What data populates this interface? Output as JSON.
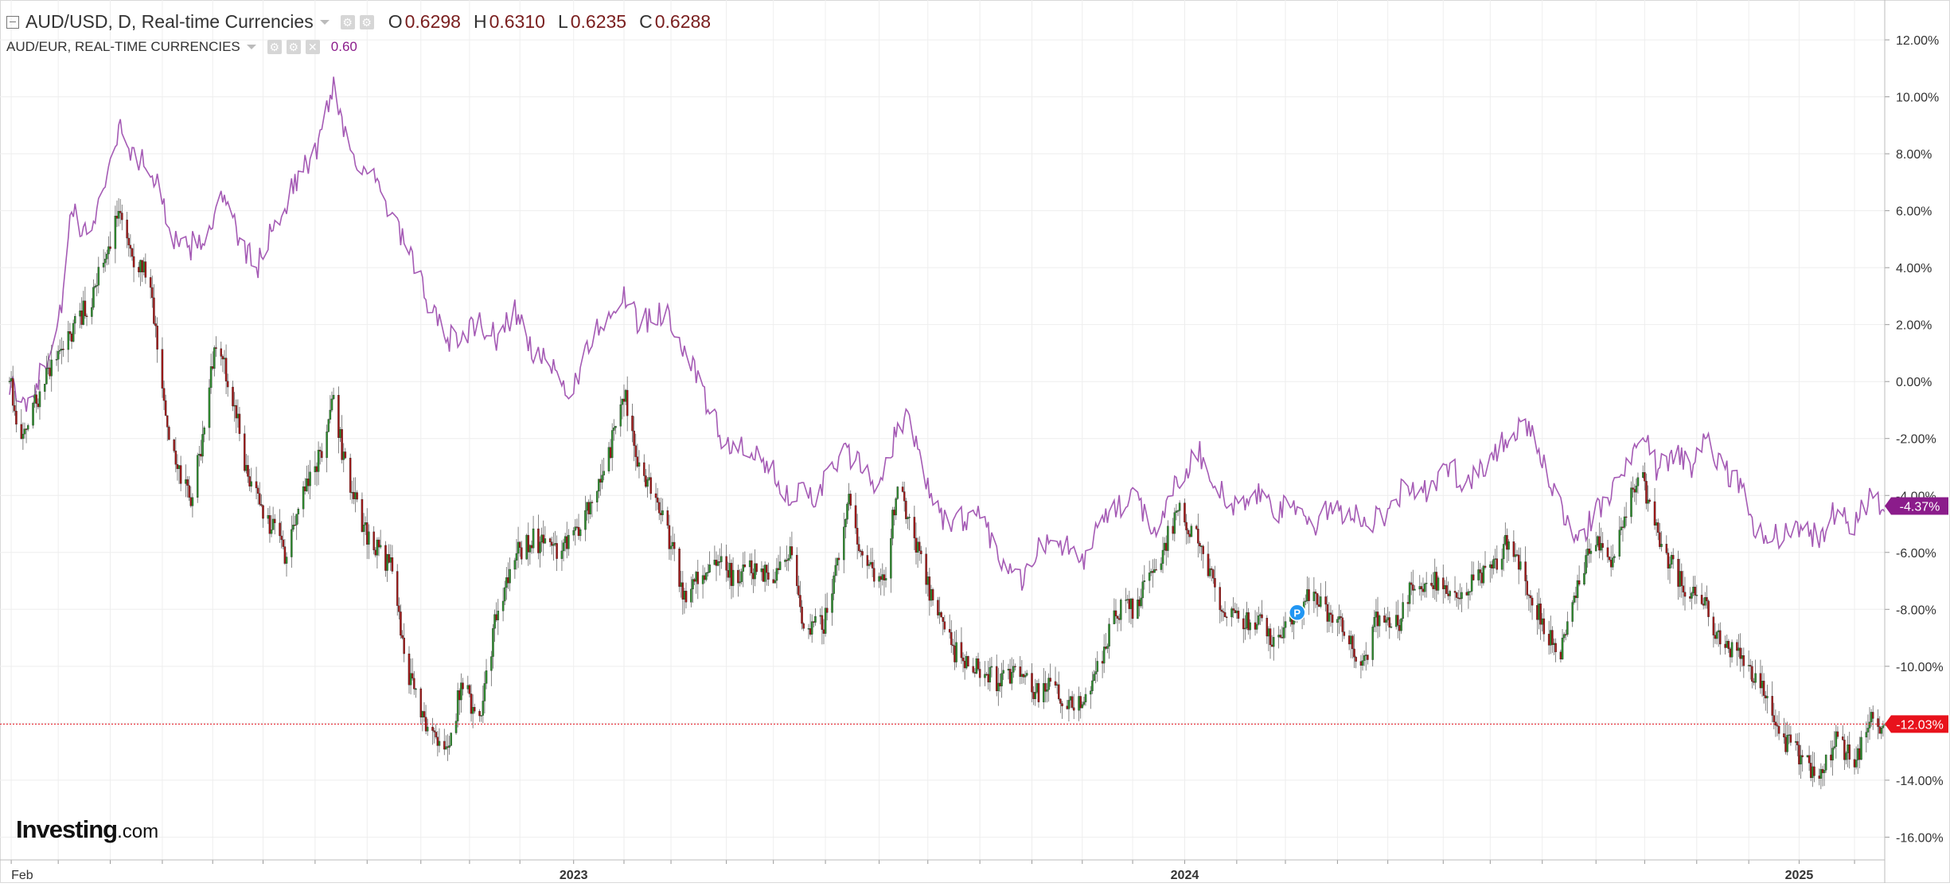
{
  "legend": {
    "main_title": "AUD/USD, D, Real-time Currencies",
    "ohlc": [
      {
        "key": "O",
        "value": "0.6298"
      },
      {
        "key": "H",
        "value": "0.6310"
      },
      {
        "key": "L",
        "value": "0.6235"
      },
      {
        "key": "C",
        "value": "0.6288"
      }
    ],
    "compare_title": "AUD/EUR, REAL-TIME CURRENCIES",
    "compare_value": "0.60"
  },
  "brand": {
    "name": "Investing",
    "domain": ".com"
  },
  "colors": {
    "up": "#2e8b2e",
    "down": "#a01818",
    "compare_line": "#a55bb5",
    "last_price": "#e8121c",
    "compare_badge": "#8b1c8b",
    "grid": "#eeeeee",
    "axis_text": "#333333"
  },
  "chart_data": {
    "type": "candlestick",
    "y_axis": {
      "unit": "percent",
      "min": -16.8,
      "max": 13.4,
      "ticks": [
        12,
        10,
        8,
        6,
        4,
        2,
        0,
        -2,
        -4,
        -6,
        -8,
        -10,
        -12,
        -14,
        -16
      ],
      "tick_labels": [
        "12.00%",
        "10.00%",
        "8.00%",
        "6.00%",
        "4.00%",
        "2.00%",
        "0.00%",
        "-2.00%",
        "-4.00%",
        "-6.00%",
        "-8.00%",
        "-10.00%",
        "-12.00%",
        "-14.00%",
        "-16.00%"
      ]
    },
    "x_axis": {
      "start": "2022-01-31",
      "end": "2025-02-21",
      "labels": [
        {
          "date": "2022-02-01",
          "text": "Feb",
          "bold": false
        },
        {
          "date": "2023-01-02",
          "text": "2023",
          "bold": true
        },
        {
          "date": "2024-01-01",
          "text": "2024",
          "bold": true
        },
        {
          "date": "2025-01-01",
          "text": "2025",
          "bold": true
        }
      ],
      "month_ticks": [
        "2022-03-01",
        "2022-04-01",
        "2022-05-02",
        "2022-06-01",
        "2022-07-01",
        "2022-08-01",
        "2022-09-01",
        "2022-10-03",
        "2022-11-01",
        "2022-12-01",
        "2023-02-01",
        "2023-03-01",
        "2023-04-03",
        "2023-05-01",
        "2023-06-01",
        "2023-07-03",
        "2023-08-01",
        "2023-09-01",
        "2023-10-02",
        "2023-11-01",
        "2023-12-01",
        "2024-02-01",
        "2024-03-01",
        "2024-04-01",
        "2024-05-01",
        "2024-06-03",
        "2024-07-01",
        "2024-08-01",
        "2024-09-02",
        "2024-10-01",
        "2024-11-01",
        "2024-12-02",
        "2025-02-03"
      ]
    },
    "series": [
      {
        "name": "AUD/USD",
        "kind": "candlestick",
        "anchors": [
          [
            "2022-01-31",
            0.0
          ],
          [
            "2022-02-07",
            -2.0
          ],
          [
            "2022-02-21",
            0.0
          ],
          [
            "2022-03-07",
            1.5
          ],
          [
            "2022-03-21",
            3.0
          ],
          [
            "2022-04-04",
            5.5
          ],
          [
            "2022-04-08",
            6.0
          ],
          [
            "2022-04-14",
            4.5
          ],
          [
            "2022-04-25",
            3.5
          ],
          [
            "2022-05-04",
            -1.5
          ],
          [
            "2022-05-11",
            -3.0
          ],
          [
            "2022-05-19",
            -4.0
          ],
          [
            "2022-05-26",
            -2.0
          ],
          [
            "2022-06-03",
            1.5
          ],
          [
            "2022-06-15",
            -1.0
          ],
          [
            "2022-06-22",
            -3.5
          ],
          [
            "2022-07-01",
            -4.5
          ],
          [
            "2022-07-14",
            -6.0
          ],
          [
            "2022-07-25",
            -4.0
          ],
          [
            "2022-08-05",
            -2.5
          ],
          [
            "2022-08-11",
            -0.5
          ],
          [
            "2022-08-19",
            -3.0
          ],
          [
            "2022-09-01",
            -5.5
          ],
          [
            "2022-09-15",
            -6.5
          ],
          [
            "2022-09-26",
            -10.5
          ],
          [
            "2022-10-10",
            -12.5
          ],
          [
            "2022-10-20",
            -13.0
          ],
          [
            "2022-10-27",
            -10.5
          ],
          [
            "2022-11-07",
            -12.0
          ],
          [
            "2022-11-16",
            -8.5
          ],
          [
            "2022-11-30",
            -6.0
          ],
          [
            "2022-12-09",
            -5.5
          ],
          [
            "2022-12-20",
            -6.0
          ],
          [
            "2023-01-03",
            -5.5
          ],
          [
            "2023-01-18",
            -3.5
          ],
          [
            "2023-02-02",
            -0.5
          ],
          [
            "2023-02-10",
            -3.0
          ],
          [
            "2023-02-24",
            -4.5
          ],
          [
            "2023-03-08",
            -7.5
          ],
          [
            "2023-03-17",
            -7.0
          ],
          [
            "2023-03-30",
            -6.0
          ],
          [
            "2023-04-07",
            -7.0
          ],
          [
            "2023-04-20",
            -6.5
          ],
          [
            "2023-05-01",
            -7.0
          ],
          [
            "2023-05-11",
            -6.0
          ],
          [
            "2023-05-19",
            -8.5
          ],
          [
            "2023-05-31",
            -8.5
          ],
          [
            "2023-06-16",
            -4.0
          ],
          [
            "2023-06-23",
            -6.5
          ],
          [
            "2023-07-06",
            -7.0
          ],
          [
            "2023-07-14",
            -3.5
          ],
          [
            "2023-07-24",
            -5.5
          ],
          [
            "2023-08-03",
            -7.5
          ],
          [
            "2023-08-17",
            -9.5
          ],
          [
            "2023-08-31",
            -10.0
          ],
          [
            "2023-09-11",
            -10.5
          ],
          [
            "2023-09-26",
            -10.0
          ],
          [
            "2023-10-04",
            -11.0
          ],
          [
            "2023-10-12",
            -10.5
          ],
          [
            "2023-10-26",
            -11.5
          ],
          [
            "2023-11-07",
            -10.5
          ],
          [
            "2023-11-14",
            -9.5
          ],
          [
            "2023-11-21",
            -8.0
          ],
          [
            "2023-12-01",
            -8.0
          ],
          [
            "2023-12-15",
            -6.5
          ],
          [
            "2023-12-28",
            -4.5
          ],
          [
            "2024-01-08",
            -5.5
          ],
          [
            "2024-01-17",
            -7.0
          ],
          [
            "2024-01-25",
            -8.0
          ],
          [
            "2024-02-07",
            -8.5
          ],
          [
            "2024-02-15",
            -8.5
          ],
          [
            "2024-02-22",
            -9.0
          ],
          [
            "2024-03-04",
            -8.5
          ],
          [
            "2024-03-14",
            -7.5
          ],
          [
            "2024-03-25",
            -8.0
          ],
          [
            "2024-04-02",
            -8.5
          ],
          [
            "2024-04-16",
            -10.0
          ],
          [
            "2024-04-26",
            -8.0
          ],
          [
            "2024-05-08",
            -8.5
          ],
          [
            "2024-05-16",
            -7.0
          ],
          [
            "2024-05-29",
            -7.0
          ],
          [
            "2024-06-10",
            -7.5
          ],
          [
            "2024-06-24",
            -7.0
          ],
          [
            "2024-07-08",
            -6.0
          ],
          [
            "2024-07-12",
            -5.5
          ],
          [
            "2024-07-22",
            -7.0
          ],
          [
            "2024-08-05",
            -9.0
          ],
          [
            "2024-08-12",
            -9.5
          ],
          [
            "2024-08-19",
            -7.5
          ],
          [
            "2024-09-02",
            -5.5
          ],
          [
            "2024-09-11",
            -6.5
          ],
          [
            "2024-09-23",
            -4.0
          ],
          [
            "2024-09-30",
            -3.5
          ],
          [
            "2024-10-09",
            -5.5
          ],
          [
            "2024-10-22",
            -7.0
          ],
          [
            "2024-11-07",
            -8.0
          ],
          [
            "2024-11-13",
            -9.0
          ],
          [
            "2024-11-22",
            -9.5
          ],
          [
            "2024-12-10",
            -10.5
          ],
          [
            "2024-12-19",
            -12.5
          ],
          [
            "2024-12-31",
            -13.0
          ],
          [
            "2025-01-13",
            -14.0
          ],
          [
            "2025-01-23",
            -12.5
          ],
          [
            "2025-02-03",
            -13.5
          ],
          [
            "2025-02-11",
            -12.0
          ],
          [
            "2025-02-21",
            -12.03
          ]
        ]
      },
      {
        "name": "AUD/EUR",
        "kind": "line",
        "anchors": [
          [
            "2022-01-31",
            0.0
          ],
          [
            "2022-02-07",
            -1.0
          ],
          [
            "2022-02-21",
            0.5
          ],
          [
            "2022-03-04",
            3.0
          ],
          [
            "2022-03-09",
            6.0
          ],
          [
            "2022-03-18",
            5.0
          ],
          [
            "2022-03-31",
            7.5
          ],
          [
            "2022-04-07",
            9.0
          ],
          [
            "2022-04-14",
            8.0
          ],
          [
            "2022-04-25",
            7.5
          ],
          [
            "2022-05-04",
            6.0
          ],
          [
            "2022-05-12",
            4.5
          ],
          [
            "2022-05-26",
            5.0
          ],
          [
            "2022-06-08",
            6.5
          ],
          [
            "2022-06-16",
            5.0
          ],
          [
            "2022-06-27",
            4.0
          ],
          [
            "2022-07-08",
            5.5
          ],
          [
            "2022-07-20",
            7.0
          ],
          [
            "2022-08-01",
            8.0
          ],
          [
            "2022-08-08",
            9.5
          ],
          [
            "2022-08-12",
            10.5
          ],
          [
            "2022-08-22",
            8.0
          ],
          [
            "2022-09-02",
            7.5
          ],
          [
            "2022-09-13",
            6.0
          ],
          [
            "2022-09-22",
            5.0
          ],
          [
            "2022-09-29",
            4.0
          ],
          [
            "2022-10-06",
            3.0
          ],
          [
            "2022-10-17",
            1.5
          ],
          [
            "2022-10-24",
            1.5
          ],
          [
            "2022-11-07",
            2.0
          ],
          [
            "2022-11-17",
            1.5
          ],
          [
            "2022-11-28",
            2.5
          ],
          [
            "2022-12-09",
            1.0
          ],
          [
            "2022-12-19",
            0.5
          ],
          [
            "2022-12-30",
            -0.5
          ],
          [
            "2023-01-06",
            0.5
          ],
          [
            "2023-01-17",
            2.0
          ],
          [
            "2023-01-31",
            3.0
          ],
          [
            "2023-02-10",
            2.0
          ],
          [
            "2023-02-24",
            2.5
          ],
          [
            "2023-03-03",
            2.0
          ],
          [
            "2023-03-17",
            0.0
          ],
          [
            "2023-03-31",
            -2.0
          ],
          [
            "2023-04-14",
            -2.5
          ],
          [
            "2023-04-28",
            -3.0
          ],
          [
            "2023-05-12",
            -4.0
          ],
          [
            "2023-05-25",
            -4.0
          ],
          [
            "2023-06-13",
            -2.5
          ],
          [
            "2023-06-23",
            -3.0
          ],
          [
            "2023-07-03",
            -4.0
          ],
          [
            "2023-07-12",
            -2.0
          ],
          [
            "2023-07-20",
            -1.0
          ],
          [
            "2023-07-27",
            -2.5
          ],
          [
            "2023-08-04",
            -4.5
          ],
          [
            "2023-08-18",
            -5.0
          ],
          [
            "2023-08-31",
            -4.5
          ],
          [
            "2023-09-12",
            -6.0
          ],
          [
            "2023-09-25",
            -7.0
          ],
          [
            "2023-10-04",
            -6.0
          ],
          [
            "2023-10-18",
            -5.5
          ],
          [
            "2023-11-01",
            -6.5
          ],
          [
            "2023-11-10",
            -5.0
          ],
          [
            "2023-11-22",
            -4.5
          ],
          [
            "2023-12-04",
            -4.0
          ],
          [
            "2023-12-14",
            -5.5
          ],
          [
            "2023-12-22",
            -4.0
          ],
          [
            "2024-01-02",
            -3.0
          ],
          [
            "2024-01-10",
            -2.5
          ],
          [
            "2024-01-19",
            -3.5
          ],
          [
            "2024-01-31",
            -4.5
          ],
          [
            "2024-02-12",
            -4.0
          ],
          [
            "2024-02-26",
            -4.5
          ],
          [
            "2024-03-07",
            -4.5
          ],
          [
            "2024-03-19",
            -5.0
          ],
          [
            "2024-03-28",
            -4.5
          ],
          [
            "2024-04-09",
            -4.5
          ],
          [
            "2024-04-19",
            -5.0
          ],
          [
            "2024-05-02",
            -4.5
          ],
          [
            "2024-05-13",
            -3.5
          ],
          [
            "2024-05-24",
            -4.0
          ],
          [
            "2024-06-06",
            -3.0
          ],
          [
            "2024-06-17",
            -3.5
          ],
          [
            "2024-06-27",
            -3.0
          ],
          [
            "2024-07-10",
            -2.0
          ],
          [
            "2024-07-19",
            -1.5
          ],
          [
            "2024-07-26",
            -2.0
          ],
          [
            "2024-08-05",
            -3.5
          ],
          [
            "2024-08-13",
            -4.5
          ],
          [
            "2024-08-22",
            -5.5
          ],
          [
            "2024-09-04",
            -4.5
          ],
          [
            "2024-09-16",
            -3.5
          ],
          [
            "2024-09-25",
            -2.5
          ],
          [
            "2024-09-30",
            -1.5
          ],
          [
            "2024-10-08",
            -3.0
          ],
          [
            "2024-10-18",
            -2.5
          ],
          [
            "2024-10-29",
            -3.0
          ],
          [
            "2024-11-07",
            -1.5
          ],
          [
            "2024-11-14",
            -3.0
          ],
          [
            "2024-11-25",
            -3.5
          ],
          [
            "2024-12-05",
            -5.0
          ],
          [
            "2024-12-16",
            -5.5
          ],
          [
            "2024-12-30",
            -5.0
          ],
          [
            "2025-01-13",
            -5.5
          ],
          [
            "2025-01-23",
            -4.5
          ],
          [
            "2025-02-03",
            -5.0
          ],
          [
            "2025-02-12",
            -4.0
          ],
          [
            "2025-02-21",
            -4.37
          ]
        ]
      }
    ],
    "last_value_badges": [
      {
        "series": "AUD/EUR",
        "value": -4.37,
        "label": "-4.37%"
      },
      {
        "series": "AUD/USD",
        "value": -12.03,
        "label": "-12.03%"
      }
    ],
    "markers": [
      {
        "date": "2024-03-08",
        "value": -8.0,
        "label": "P"
      }
    ],
    "grid": true,
    "legend_position": "top-left"
  }
}
